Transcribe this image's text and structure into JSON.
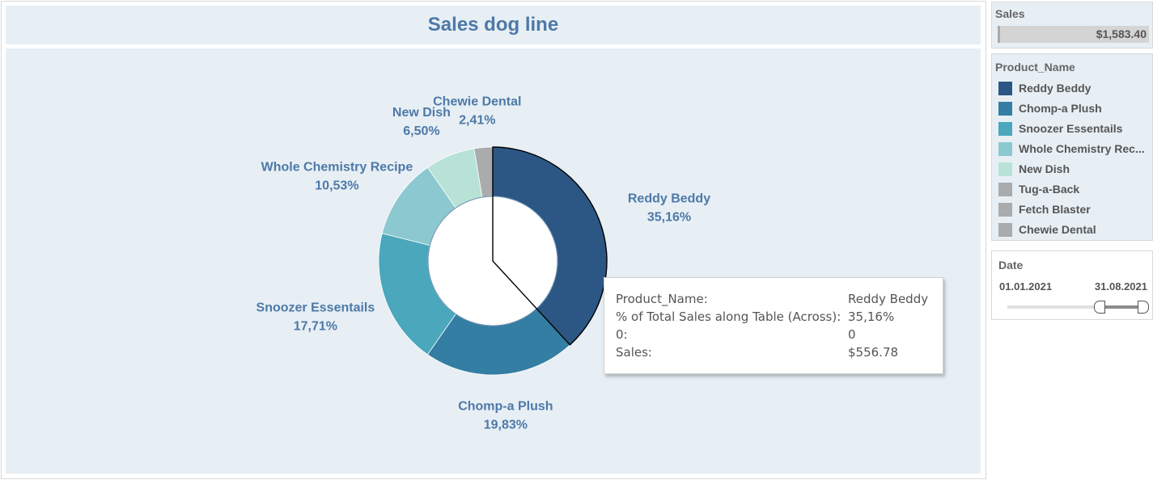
{
  "dashboard": {
    "title": "Sales dog line"
  },
  "chart_data": {
    "type": "pie",
    "title": "Sales dog line",
    "categories": [
      "Reddy Beddy",
      "Chomp-a Plush",
      "Snoozer Essentails",
      "Whole Chemistry Recipe",
      "New Dish",
      "Chewie Dental"
    ],
    "values": [
      35.16,
      19.83,
      17.71,
      10.53,
      6.5,
      2.41
    ],
    "labels": [
      "35,16%",
      "19,83%",
      "17,71%",
      "10,53%",
      "6,50%",
      "2,41%"
    ],
    "colors": [
      "#2c5784",
      "#347da3",
      "#4aa7bc",
      "#8cc8cf",
      "#b9e2d7",
      "#a9abad"
    ],
    "highlighted": "Reddy Beddy",
    "donut": true
  },
  "tooltip": {
    "rows": [
      {
        "key": "Product_Name:",
        "value": "Reddy Beddy"
      },
      {
        "key": "% of Total Sales along Table (Across):",
        "value": "35,16%"
      },
      {
        "key": "0:",
        "value": "0"
      },
      {
        "key": "Sales:",
        "value": "$556.78"
      }
    ]
  },
  "sales_filter": {
    "label": "Sales",
    "value": "$1,583.40"
  },
  "legend": {
    "title": "Product_Name",
    "items": [
      {
        "label": "Reddy Beddy",
        "color": "#2c5784"
      },
      {
        "label": "Chomp-a Plush",
        "color": "#347da3"
      },
      {
        "label": "Snoozer Essentails",
        "color": "#4aa7bc"
      },
      {
        "label": "Whole Chemistry Rec...",
        "color": "#8cc8cf"
      },
      {
        "label": "New Dish",
        "color": "#b9e2d7"
      },
      {
        "label": "Tug-a-Back",
        "color": "#a9abad"
      },
      {
        "label": "Fetch Blaster",
        "color": "#a9abad"
      },
      {
        "label": "Chewie Dental",
        "color": "#a9abad"
      }
    ]
  },
  "date_filter": {
    "label": "Date",
    "start": "01.01.2021",
    "end": "31.08.2021"
  }
}
